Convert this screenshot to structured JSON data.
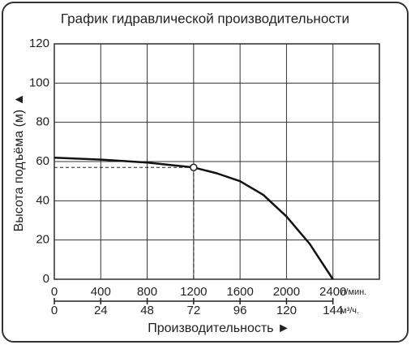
{
  "chart_data": {
    "type": "line",
    "title": "График гидравлической производительности",
    "y_label": "Высота подъёма (м) ▲",
    "x_label": "Производительность ►",
    "x_unit": "л/мин.",
    "x2_unit": "м³/ч.",
    "x": [
      0,
      400,
      800,
      1200,
      1400,
      1600,
      1800,
      2000,
      2200,
      2300,
      2400
    ],
    "values": [
      62,
      61,
      59.5,
      57,
      54,
      50,
      43,
      32,
      18,
      9,
      0
    ],
    "color": "#111111",
    "highlight": {
      "x": 1200,
      "y": 57
    },
    "xlim": [
      0,
      2800
    ],
    "xticks": [
      0,
      400,
      800,
      1200,
      1600,
      2000,
      2400
    ],
    "x2lim": [
      0,
      168
    ],
    "x2ticks": [
      0,
      24,
      48,
      72,
      96,
      120,
      144
    ],
    "ylim": [
      0,
      120
    ],
    "yticks": [
      0,
      20,
      40,
      60,
      80,
      100,
      120
    ],
    "grid": true
  }
}
